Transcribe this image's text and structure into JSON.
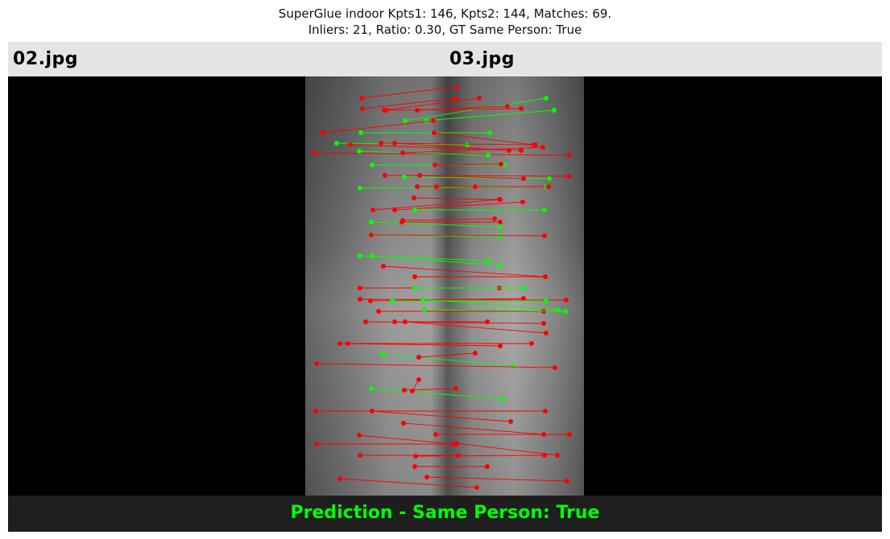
{
  "title": {
    "line1": "SuperGlue indoor Kpts1: 146, Kpts2: 144, Matches: 69.",
    "line2": "Inliers: 21, Ratio: 0.30, GT Same Person: True"
  },
  "images": {
    "left_label": "02.jpg",
    "right_label": "03.jpg"
  },
  "footer": {
    "prediction_text": "Prediction - Same Person: True"
  },
  "colors": {
    "inlier": "#00ff00",
    "outlier": "#ff0000",
    "header_bg": "#e5e5e5",
    "footer_bg": "#1e1e1e",
    "prediction_text": "#00ff00"
  }
}
